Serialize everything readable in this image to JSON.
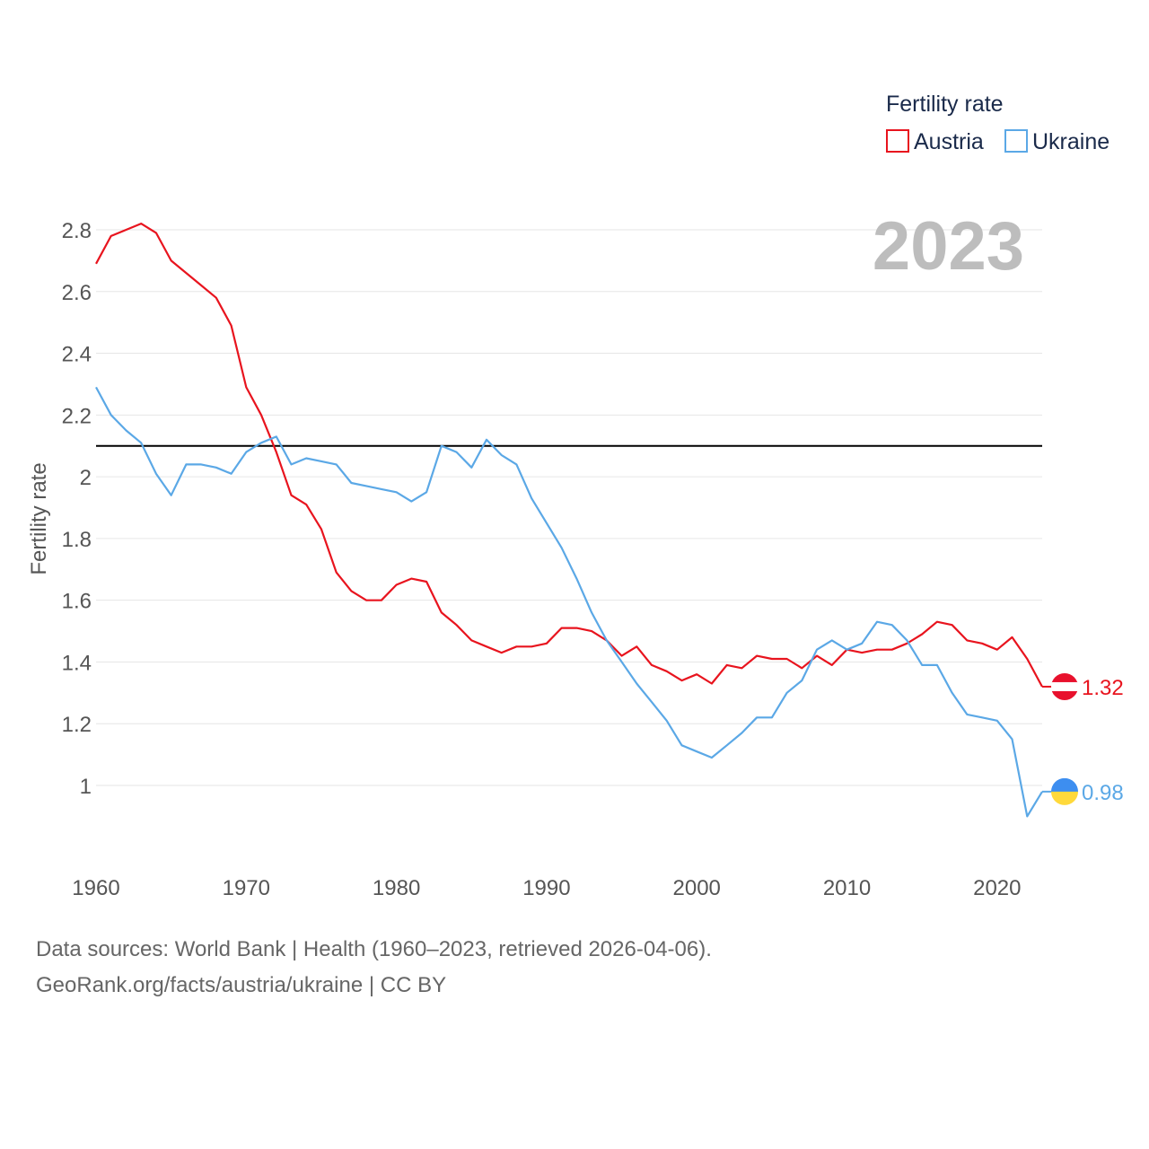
{
  "chart_data": {
    "type": "line",
    "title": "",
    "year_label": "2023",
    "legend_title": "Fertility rate",
    "xlabel": "",
    "ylabel": "Fertility rate",
    "xlim": [
      1960,
      2023
    ],
    "ylim": [
      0.85,
      2.9
    ],
    "x_ticks": [
      1960,
      1970,
      1980,
      1990,
      2000,
      2010,
      2020
    ],
    "y_ticks": [
      1,
      1.2,
      1.4,
      1.6,
      1.8,
      2,
      2.2,
      2.4,
      2.6,
      2.8
    ],
    "y_tick_labels": [
      "1",
      "1.2",
      "1.4",
      "1.6",
      "1.8",
      "2",
      "2.2",
      "2.4",
      "2.6",
      "2.8"
    ],
    "reference_line": {
      "y": 2.1,
      "color": "#000000"
    },
    "x": [
      1960,
      1961,
      1962,
      1963,
      1964,
      1965,
      1966,
      1967,
      1968,
      1969,
      1970,
      1971,
      1972,
      1973,
      1974,
      1975,
      1976,
      1977,
      1978,
      1979,
      1980,
      1981,
      1982,
      1983,
      1984,
      1985,
      1986,
      1987,
      1988,
      1989,
      1990,
      1991,
      1992,
      1993,
      1994,
      1995,
      1996,
      1997,
      1998,
      1999,
      2000,
      2001,
      2002,
      2003,
      2004,
      2005,
      2006,
      2007,
      2008,
      2009,
      2010,
      2011,
      2012,
      2013,
      2014,
      2015,
      2016,
      2017,
      2018,
      2019,
      2020,
      2021,
      2022,
      2023
    ],
    "series": [
      {
        "name": "Austria",
        "color": "#e8141e",
        "end_label": "1.32",
        "flag_colors": [
          "#e8112d",
          "#ffffff",
          "#e8112d"
        ],
        "values": [
          2.69,
          2.78,
          2.8,
          2.82,
          2.79,
          2.7,
          2.66,
          2.62,
          2.58,
          2.49,
          2.29,
          2.2,
          2.08,
          1.94,
          1.91,
          1.83,
          1.69,
          1.63,
          1.6,
          1.6,
          1.65,
          1.67,
          1.66,
          1.56,
          1.52,
          1.47,
          1.45,
          1.43,
          1.45,
          1.45,
          1.46,
          1.51,
          1.51,
          1.5,
          1.47,
          1.42,
          1.45,
          1.39,
          1.37,
          1.34,
          1.36,
          1.33,
          1.39,
          1.38,
          1.42,
          1.41,
          1.41,
          1.38,
          1.42,
          1.39,
          1.44,
          1.43,
          1.44,
          1.44,
          1.46,
          1.49,
          1.53,
          1.52,
          1.47,
          1.46,
          1.44,
          1.48,
          1.41,
          1.32
        ]
      },
      {
        "name": "Ukraine",
        "color": "#5ba8e6",
        "end_label": "0.98",
        "flag_colors": [
          "#3d8ef0",
          "#ffd93b"
        ],
        "values": [
          2.29,
          2.2,
          2.15,
          2.11,
          2.01,
          1.94,
          2.04,
          2.04,
          2.03,
          2.01,
          2.08,
          2.11,
          2.13,
          2.04,
          2.06,
          2.05,
          2.04,
          1.98,
          1.97,
          1.96,
          1.95,
          1.92,
          1.95,
          2.1,
          2.08,
          2.03,
          2.12,
          2.07,
          2.04,
          1.93,
          1.85,
          1.77,
          1.67,
          1.56,
          1.47,
          1.4,
          1.33,
          1.27,
          1.21,
          1.13,
          1.11,
          1.09,
          1.13,
          1.17,
          1.22,
          1.22,
          1.3,
          1.34,
          1.44,
          1.47,
          1.44,
          1.46,
          1.53,
          1.52,
          1.47,
          1.39,
          1.39,
          1.3,
          1.23,
          1.22,
          1.21,
          1.15,
          0.9,
          0.98
        ]
      }
    ]
  },
  "footer": {
    "source_line": "Data sources: World Bank | Health (1960–2023, retrieved 2026-04-06).",
    "url_line": "GeoRank.org/facts/austria/ukraine | CC BY"
  }
}
